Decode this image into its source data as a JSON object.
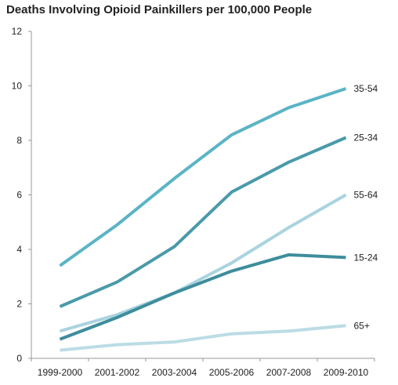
{
  "chart_data": {
    "type": "line",
    "title": "Deaths Involving Opioid Painkillers per 100,000 People",
    "xlabel": "",
    "ylabel": "",
    "categories": [
      "1999-2000",
      "2001-2002",
      "2003-2004",
      "2005-2006",
      "2007-2008",
      "2009-2010"
    ],
    "ylim": [
      0,
      12
    ],
    "yticks": [
      0,
      2,
      4,
      6,
      8,
      10,
      12
    ],
    "grid": false,
    "legend": "labels at line ends (right)",
    "series": [
      {
        "name": "35-54",
        "color": "#5ab4c6",
        "values": [
          3.4,
          4.9,
          6.6,
          8.2,
          9.2,
          9.9
        ]
      },
      {
        "name": "25-34",
        "color": "#4a9aaa",
        "values": [
          1.9,
          2.8,
          4.1,
          6.1,
          7.2,
          8.1
        ]
      },
      {
        "name": "55-64",
        "color": "#a9d3df",
        "values": [
          1.0,
          1.6,
          2.4,
          3.5,
          4.8,
          6.0
        ]
      },
      {
        "name": "15-24",
        "color": "#3e8d9c",
        "values": [
          0.7,
          1.5,
          2.4,
          3.2,
          3.8,
          3.7
        ]
      },
      {
        "name": "65+",
        "color": "#bcdce5",
        "values": [
          0.3,
          0.5,
          0.6,
          0.9,
          1.0,
          1.2
        ]
      }
    ]
  }
}
